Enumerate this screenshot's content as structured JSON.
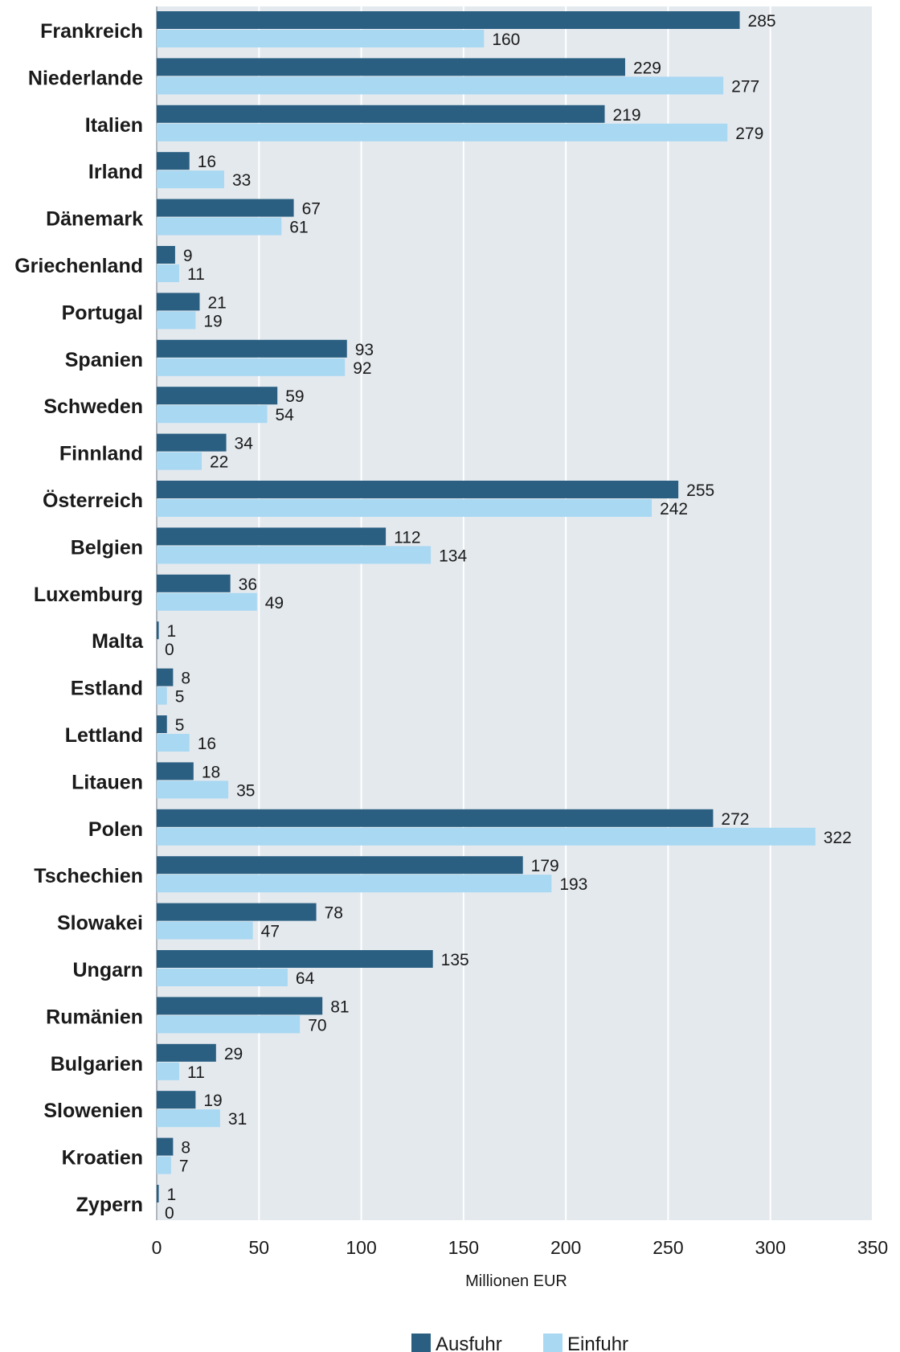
{
  "chart_data": {
    "type": "bar",
    "orientation": "horizontal",
    "categories": [
      "Frankreich",
      "Niederlande",
      "Italien",
      "Irland",
      "Dänemark",
      "Griechenland",
      "Portugal",
      "Spanien",
      "Schweden",
      "Finnland",
      "Österreich",
      "Belgien",
      "Luxemburg",
      "Malta",
      "Estland",
      "Lettland",
      "Litauen",
      "Polen",
      "Tschechien",
      "Slowakei",
      "Ungarn",
      "Rumänien",
      "Bulgarien",
      "Slowenien",
      "Kroatien",
      "Zypern"
    ],
    "series": [
      {
        "name": "Ausfuhr",
        "color": "#2a5f82",
        "values": [
          285,
          229,
          219,
          16,
          67,
          9,
          21,
          93,
          59,
          34,
          255,
          112,
          36,
          1,
          8,
          5,
          18,
          272,
          179,
          78,
          135,
          81,
          29,
          19,
          8,
          1
        ]
      },
      {
        "name": "Einfuhr",
        "color": "#a8d8f2",
        "values": [
          160,
          277,
          279,
          33,
          61,
          11,
          19,
          92,
          54,
          22,
          242,
          134,
          49,
          0,
          5,
          16,
          35,
          322,
          193,
          47,
          64,
          70,
          11,
          31,
          7,
          0
        ]
      }
    ],
    "xlabel": "Millionen EUR",
    "xlim": [
      0,
      350
    ],
    "xticks": [
      0,
      50,
      100,
      150,
      200,
      250,
      300,
      350
    ],
    "grid": true,
    "legend": "bottom",
    "background_color": "#e4e9ee",
    "grid_color": "#ffffff"
  }
}
